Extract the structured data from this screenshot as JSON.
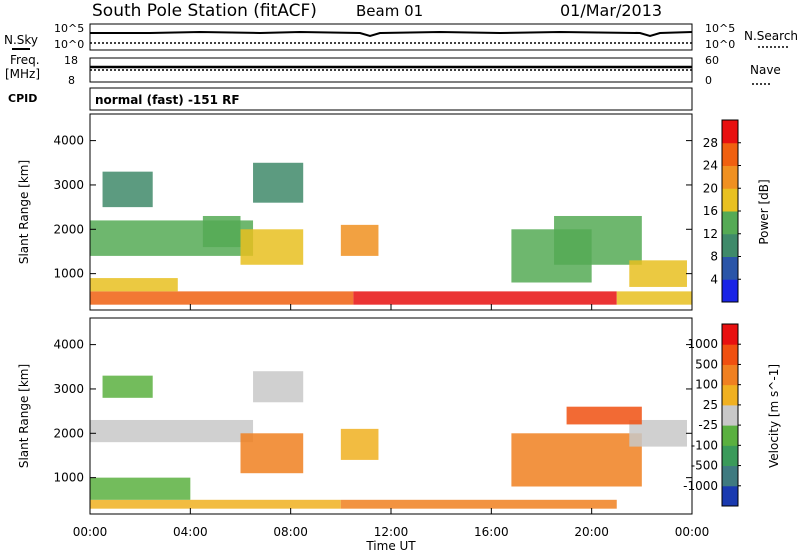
{
  "header": {
    "station": "South Pole Station (fitACF)",
    "beam": "Beam 01",
    "date": "01/Mar/2013"
  },
  "status_panel": {
    "nsky_label": "N.Sky",
    "nsearch_label": "N.Search",
    "nsky_ticks": [
      "10^5",
      "10^0"
    ],
    "nsearch_ticks": [
      "10^5",
      "10^0"
    ],
    "freq_label": "Freq.",
    "freq_unit": "[MHz]",
    "freq_ticks": [
      "18",
      "8"
    ],
    "nave_label": "Nave",
    "nave_ticks": [
      "60",
      "0"
    ],
    "cpid_label": "CPID",
    "cpid_value": "normal (fast) -151 RF"
  },
  "colors": {
    "power_scale": [
      "#1a24e6",
      "#2a55a8",
      "#3f8a6a",
      "#55aa55",
      "#e8c020",
      "#f09020",
      "#f06010",
      "#e81010"
    ],
    "velocity_scale": [
      "#1a3ab0",
      "#3f7a80",
      "#3a9a5a",
      "#5ab040",
      "#c8c8c8",
      "#f0b020",
      "#f08020",
      "#f05010",
      "#e81010"
    ]
  },
  "chart_data": [
    {
      "type": "heatmap",
      "name": "power",
      "xlabel": "Time UT",
      "ylabel": "Slant Range [km]",
      "x_ticks": [
        "00:00",
        "04:00",
        "08:00",
        "12:00",
        "16:00",
        "20:00",
        "00:00"
      ],
      "xlim_hours": [
        0,
        24
      ],
      "ylim_km": [
        180,
        4600
      ],
      "y_ticks": [
        1000,
        2000,
        3000,
        4000
      ],
      "colorbar_label": "Power [dB]",
      "colorbar_ticks": [
        28,
        24,
        20,
        16,
        12,
        8,
        4
      ],
      "regions": [
        {
          "t": [
            0,
            10.5
          ],
          "r": [
            300,
            600
          ],
          "level": 6
        },
        {
          "t": [
            10.5,
            21
          ],
          "r": [
            300,
            600
          ],
          "level": 7
        },
        {
          "t": [
            21,
            24
          ],
          "r": [
            300,
            600
          ],
          "level": 4
        },
        {
          "t": [
            0,
            3.5
          ],
          "r": [
            600,
            900
          ],
          "level": 4
        },
        {
          "t": [
            0,
            6.5
          ],
          "r": [
            1400,
            2200
          ],
          "level": 3
        },
        {
          "t": [
            0.5,
            2.5
          ],
          "r": [
            2500,
            3300
          ],
          "level": 2
        },
        {
          "t": [
            4.5,
            6
          ],
          "r": [
            1600,
            2300
          ],
          "level": 3
        },
        {
          "t": [
            6,
            8.5
          ],
          "r": [
            1200,
            2000
          ],
          "level": 4
        },
        {
          "t": [
            6.5,
            8.5
          ],
          "r": [
            2600,
            3500
          ],
          "level": 2
        },
        {
          "t": [
            10,
            11.5
          ],
          "r": [
            1400,
            2100
          ],
          "level": 5
        },
        {
          "t": [
            16.8,
            20
          ],
          "r": [
            800,
            2000
          ],
          "level": 3
        },
        {
          "t": [
            18.5,
            22
          ],
          "r": [
            1200,
            2300
          ],
          "level": 3
        },
        {
          "t": [
            21.5,
            23.8
          ],
          "r": [
            700,
            1300
          ],
          "level": 4
        }
      ]
    },
    {
      "type": "heatmap",
      "name": "velocity",
      "xlabel": "Time UT",
      "ylabel": "Slant Range [km]",
      "x_ticks": [
        "00:00",
        "04:00",
        "08:00",
        "12:00",
        "16:00",
        "20:00",
        "00:00"
      ],
      "xlim_hours": [
        0,
        24
      ],
      "ylim_km": [
        180,
        4600
      ],
      "y_ticks": [
        1000,
        2000,
        3000,
        4000
      ],
      "colorbar_label": "Velocity [m s^-1]",
      "colorbar_ticks": [
        1000,
        500,
        100,
        25,
        -25,
        -100,
        -500,
        -1000
      ],
      "regions": [
        {
          "t": [
            0,
            10
          ],
          "r": [
            300,
            500
          ],
          "level": 5
        },
        {
          "t": [
            10,
            21
          ],
          "r": [
            300,
            500
          ],
          "level": 6
        },
        {
          "t": [
            0,
            4
          ],
          "r": [
            500,
            1000
          ],
          "level": 3
        },
        {
          "t": [
            0,
            6.5
          ],
          "r": [
            1800,
            2300
          ],
          "level": 4
        },
        {
          "t": [
            0.5,
            2.5
          ],
          "r": [
            2800,
            3300
          ],
          "level": 3
        },
        {
          "t": [
            6,
            8.5
          ],
          "r": [
            1100,
            2000
          ],
          "level": 6
        },
        {
          "t": [
            6.5,
            8.5
          ],
          "r": [
            2700,
            3400
          ],
          "level": 4
        },
        {
          "t": [
            10,
            11.5
          ],
          "r": [
            1400,
            2100
          ],
          "level": 5
        },
        {
          "t": [
            16.8,
            22
          ],
          "r": [
            800,
            2000
          ],
          "level": 6
        },
        {
          "t": [
            21.5,
            23.8
          ],
          "r": [
            1700,
            2300
          ],
          "level": 4
        },
        {
          "t": [
            19,
            22
          ],
          "r": [
            2200,
            2600
          ],
          "level": 7
        }
      ]
    }
  ]
}
